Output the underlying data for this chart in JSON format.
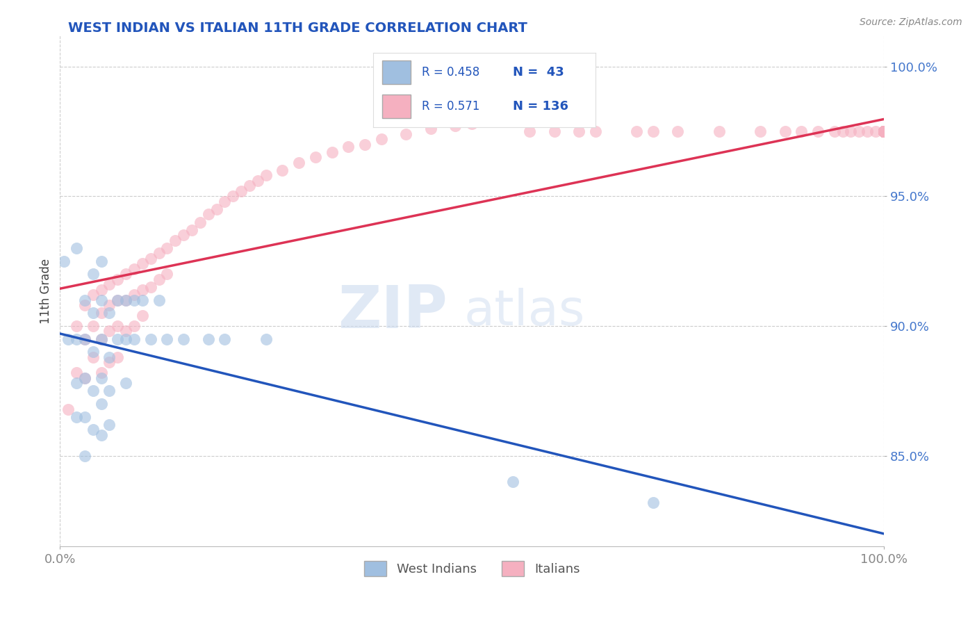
{
  "title": "WEST INDIAN VS ITALIAN 11TH GRADE CORRELATION CHART",
  "source_text": "Source: ZipAtlas.com",
  "ylabel": "11th Grade",
  "x_min": 0.0,
  "x_max": 1.0,
  "y_min": 0.815,
  "y_max": 1.012,
  "y_ticks": [
    0.85,
    0.9,
    0.95,
    1.0
  ],
  "y_tick_labels": [
    "85.0%",
    "90.0%",
    "95.0%",
    "100.0%"
  ],
  "blue_color": "#a0bfe0",
  "pink_color": "#f5b0c0",
  "blue_line_color": "#2255bb",
  "pink_line_color": "#dd3355",
  "title_color": "#2255bb",
  "tick_color_y": "#4477cc",
  "tick_color_x": "#888888",
  "source_color": "#888888",
  "R_blue": 0.458,
  "N_blue": 43,
  "R_pink": 0.571,
  "N_pink": 136,
  "watermark_zip": "ZIP",
  "watermark_atlas": "atlas",
  "blue_scatter_x": [
    0.005,
    0.01,
    0.02,
    0.02,
    0.02,
    0.02,
    0.03,
    0.03,
    0.03,
    0.03,
    0.03,
    0.04,
    0.04,
    0.04,
    0.04,
    0.04,
    0.05,
    0.05,
    0.05,
    0.05,
    0.05,
    0.05,
    0.06,
    0.06,
    0.06,
    0.06,
    0.07,
    0.07,
    0.08,
    0.08,
    0.08,
    0.09,
    0.09,
    0.1,
    0.11,
    0.12,
    0.13,
    0.15,
    0.18,
    0.2,
    0.25,
    0.55,
    0.72
  ],
  "blue_scatter_y": [
    0.925,
    0.895,
    0.93,
    0.895,
    0.878,
    0.865,
    0.91,
    0.895,
    0.88,
    0.865,
    0.85,
    0.92,
    0.905,
    0.89,
    0.875,
    0.86,
    0.925,
    0.91,
    0.895,
    0.88,
    0.87,
    0.858,
    0.905,
    0.888,
    0.875,
    0.862,
    0.91,
    0.895,
    0.91,
    0.895,
    0.878,
    0.91,
    0.895,
    0.91,
    0.895,
    0.91,
    0.895,
    0.895,
    0.895,
    0.895,
    0.895,
    0.84,
    0.832
  ],
  "pink_scatter_x": [
    0.01,
    0.02,
    0.02,
    0.03,
    0.03,
    0.03,
    0.04,
    0.04,
    0.04,
    0.05,
    0.05,
    0.05,
    0.05,
    0.06,
    0.06,
    0.06,
    0.06,
    0.07,
    0.07,
    0.07,
    0.07,
    0.08,
    0.08,
    0.08,
    0.09,
    0.09,
    0.09,
    0.1,
    0.1,
    0.1,
    0.11,
    0.11,
    0.12,
    0.12,
    0.13,
    0.13,
    0.14,
    0.15,
    0.16,
    0.17,
    0.18,
    0.19,
    0.2,
    0.21,
    0.22,
    0.23,
    0.24,
    0.25,
    0.27,
    0.29,
    0.31,
    0.33,
    0.35,
    0.37,
    0.39,
    0.42,
    0.45,
    0.48,
    0.5,
    0.53,
    0.55,
    0.57,
    0.6,
    0.63,
    0.65,
    0.7,
    0.72,
    0.75,
    0.8,
    0.85,
    0.88,
    0.9,
    0.92,
    0.94,
    0.95,
    0.96,
    0.97,
    0.98,
    0.99,
    1.0,
    1.0,
    1.0,
    1.0,
    1.0,
    1.0,
    1.0,
    1.0,
    1.0,
    1.0,
    1.0,
    1.0,
    1.0,
    1.0,
    1.0,
    1.0,
    1.0,
    1.0,
    1.0,
    1.0,
    1.0,
    1.0,
    1.0,
    1.0,
    1.0,
    1.0,
    1.0,
    1.0,
    1.0,
    1.0,
    1.0,
    1.0,
    1.0,
    1.0,
    1.0,
    1.0,
    1.0,
    1.0,
    1.0,
    1.0,
    1.0,
    1.0,
    1.0,
    1.0,
    1.0,
    1.0,
    1.0,
    1.0,
    1.0,
    1.0,
    1.0,
    1.0,
    1.0,
    1.0,
    1.0,
    1.0,
    1.0
  ],
  "pink_scatter_y": [
    0.868,
    0.9,
    0.882,
    0.908,
    0.895,
    0.88,
    0.912,
    0.9,
    0.888,
    0.914,
    0.905,
    0.895,
    0.882,
    0.916,
    0.908,
    0.898,
    0.886,
    0.918,
    0.91,
    0.9,
    0.888,
    0.92,
    0.91,
    0.898,
    0.922,
    0.912,
    0.9,
    0.924,
    0.914,
    0.904,
    0.926,
    0.915,
    0.928,
    0.918,
    0.93,
    0.92,
    0.933,
    0.935,
    0.937,
    0.94,
    0.943,
    0.945,
    0.948,
    0.95,
    0.952,
    0.954,
    0.956,
    0.958,
    0.96,
    0.963,
    0.965,
    0.967,
    0.969,
    0.97,
    0.972,
    0.974,
    0.976,
    0.977,
    0.978,
    0.979,
    0.979,
    0.975,
    0.975,
    0.975,
    0.975,
    0.975,
    0.975,
    0.975,
    0.975,
    0.975,
    0.975,
    0.975,
    0.975,
    0.975,
    0.975,
    0.975,
    0.975,
    0.975,
    0.975,
    0.975,
    0.975,
    0.975,
    0.975,
    0.975,
    0.975,
    0.975,
    0.975,
    0.975,
    0.975,
    0.975,
    0.975,
    0.975,
    0.975,
    0.975,
    0.975,
    0.975,
    0.975,
    0.975,
    0.975,
    0.975,
    0.975,
    0.975,
    0.975,
    0.975,
    0.975,
    0.975,
    0.975,
    0.975,
    0.975,
    0.975,
    0.975,
    0.975,
    0.975,
    0.975,
    0.975,
    0.975,
    0.975,
    0.975,
    0.975,
    0.975,
    0.975,
    0.975,
    0.975,
    0.975,
    0.975,
    0.975,
    0.975,
    0.975,
    0.975,
    0.975,
    0.975,
    0.975,
    0.975,
    0.975,
    0.975,
    0.975
  ]
}
